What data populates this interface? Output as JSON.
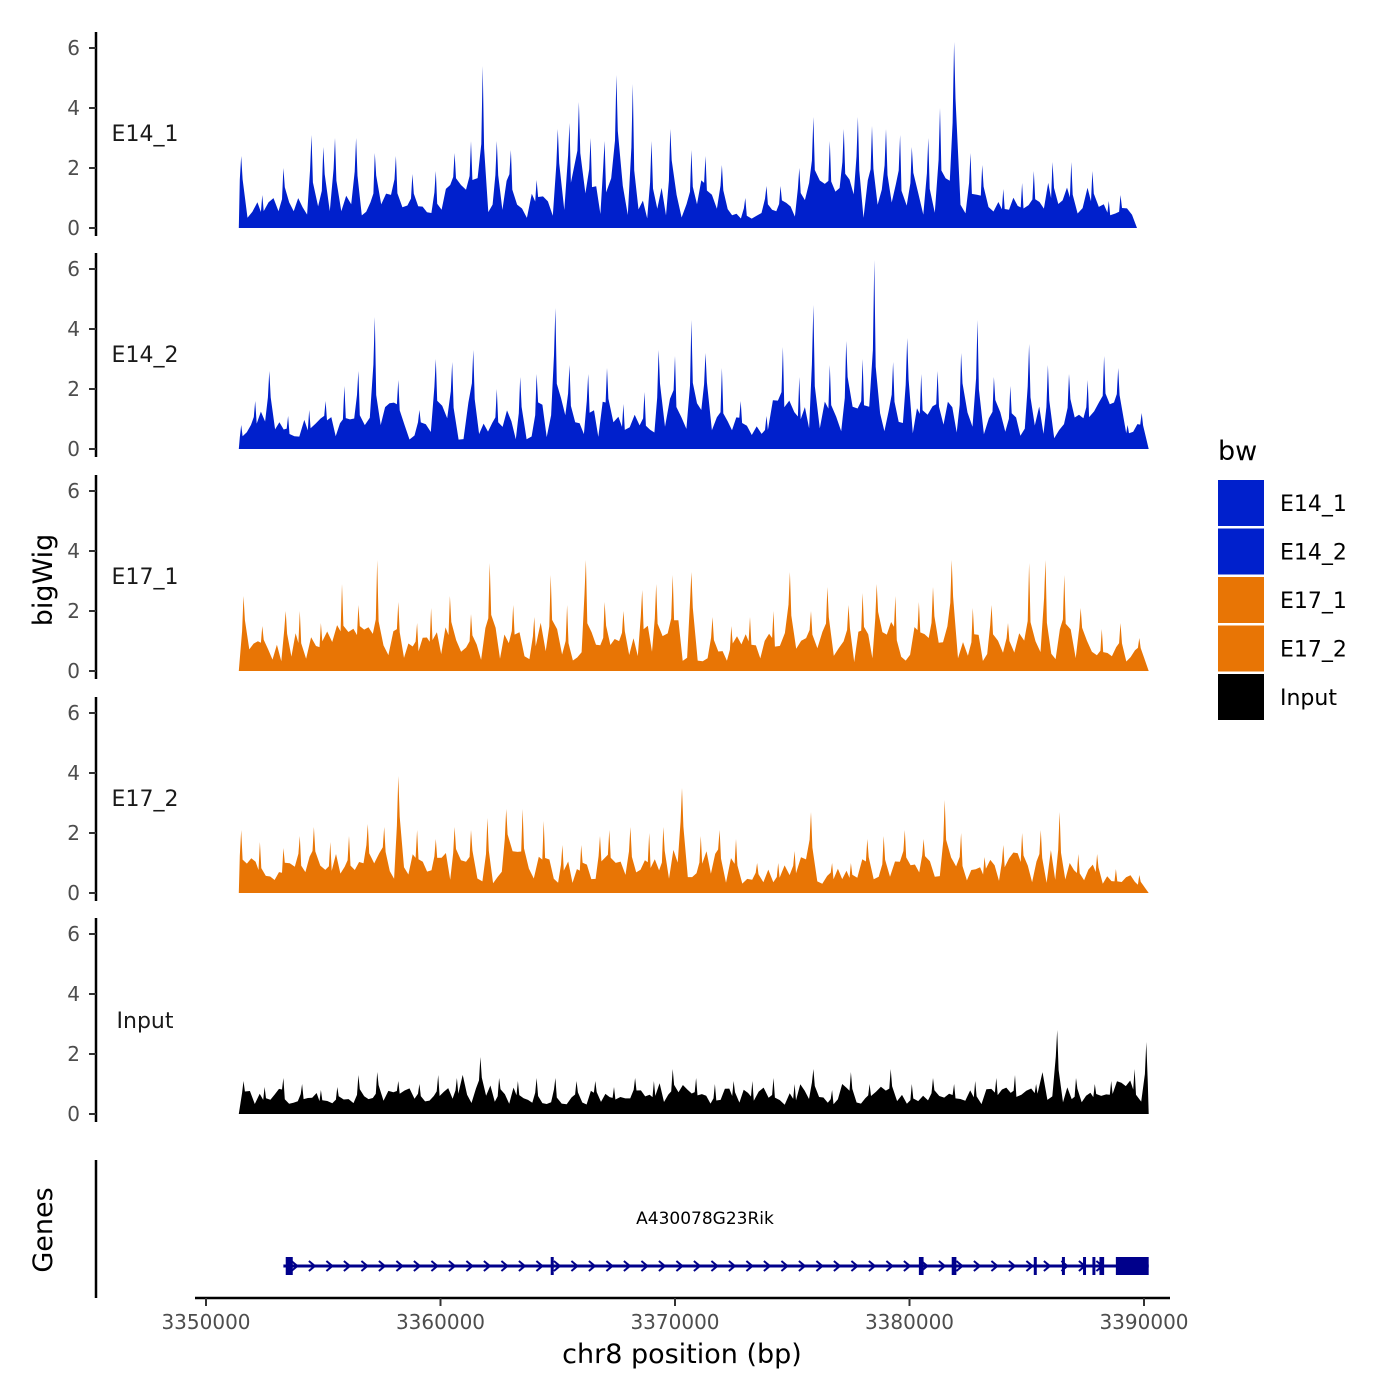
{
  "chart_data": {
    "type": "area",
    "chromosome": "chr8",
    "xlabel": "chr8 position (bp)",
    "ylabel": "bigWig",
    "genes_label": "Genes",
    "xlim": [
      3349000,
      3391000
    ],
    "x_ticks": [
      3350000,
      3360000,
      3370000,
      3380000,
      3390000
    ],
    "x_tick_labels": [
      "3350000",
      "3360000",
      "3370000",
      "3380000",
      "3390000"
    ],
    "ylim": [
      0,
      6.5
    ],
    "y_ticks": [
      0,
      2,
      4,
      6
    ],
    "y_tick_labels": [
      "0",
      "2",
      "4",
      "6"
    ],
    "legend": {
      "title": "bw",
      "entries": [
        {
          "name": "E14_1",
          "color": "#0020CC"
        },
        {
          "name": "E14_2",
          "color": "#0020CC"
        },
        {
          "name": "E17_1",
          "color": "#E87505"
        },
        {
          "name": "E17_2",
          "color": "#E87505"
        },
        {
          "name": "Input",
          "color": "#000000"
        }
      ]
    },
    "series": [
      {
        "name": "E14_1",
        "label": "E14_1",
        "color": "#0020CC",
        "x_start": 3351400,
        "x_end": 3389700,
        "peaks": [
          [
            3351500,
            2.4
          ],
          [
            3352400,
            1.1
          ],
          [
            3353300,
            2.0
          ],
          [
            3354500,
            3.1
          ],
          [
            3355000,
            2.7
          ],
          [
            3355500,
            3.0
          ],
          [
            3356400,
            3.0
          ],
          [
            3357200,
            2.5
          ],
          [
            3358100,
            2.4
          ],
          [
            3358800,
            1.8
          ],
          [
            3359800,
            1.9
          ],
          [
            3360600,
            2.5
          ],
          [
            3361300,
            2.9
          ],
          [
            3361800,
            5.4
          ],
          [
            3362400,
            2.9
          ],
          [
            3363000,
            2.6
          ],
          [
            3364100,
            1.6
          ],
          [
            3365000,
            3.3
          ],
          [
            3365500,
            3.5
          ],
          [
            3365900,
            4.2
          ],
          [
            3366400,
            3.0
          ],
          [
            3367000,
            2.9
          ],
          [
            3367500,
            5.1
          ],
          [
            3368200,
            4.8
          ],
          [
            3369000,
            2.9
          ],
          [
            3369800,
            3.3
          ],
          [
            3370700,
            2.6
          ],
          [
            3371300,
            2.4
          ],
          [
            3372000,
            2.1
          ],
          [
            3373000,
            1.0
          ],
          [
            3373900,
            1.4
          ],
          [
            3374500,
            1.4
          ],
          [
            3375300,
            2.0
          ],
          [
            3375900,
            3.7
          ],
          [
            3376600,
            2.9
          ],
          [
            3377200,
            3.3
          ],
          [
            3377800,
            3.7
          ],
          [
            3378400,
            3.4
          ],
          [
            3379000,
            3.3
          ],
          [
            3379600,
            3.1
          ],
          [
            3380100,
            2.7
          ],
          [
            3380800,
            3.0
          ],
          [
            3381300,
            4.0
          ],
          [
            3381900,
            6.2
          ],
          [
            3382600,
            2.5
          ],
          [
            3383100,
            2.1
          ],
          [
            3384000,
            1.3
          ],
          [
            3384800,
            1.5
          ],
          [
            3385300,
            1.9
          ],
          [
            3386100,
            2.2
          ],
          [
            3386900,
            2.2
          ],
          [
            3387800,
            1.9
          ],
          [
            3388500,
            0.9
          ],
          [
            3389000,
            1.1
          ]
        ]
      },
      {
        "name": "E14_2",
        "label": "E14_2",
        "color": "#0020CC",
        "x_start": 3351400,
        "x_end": 3390200,
        "peaks": [
          [
            3351500,
            0.8
          ],
          [
            3352100,
            1.6
          ],
          [
            3352700,
            2.6
          ],
          [
            3353500,
            1.1
          ],
          [
            3354400,
            1.3
          ],
          [
            3355100,
            1.6
          ],
          [
            3355900,
            2.1
          ],
          [
            3356500,
            2.6
          ],
          [
            3357200,
            4.4
          ],
          [
            3358200,
            2.3
          ],
          [
            3359100,
            1.3
          ],
          [
            3359800,
            3.0
          ],
          [
            3360500,
            2.9
          ],
          [
            3361400,
            3.3
          ],
          [
            3362400,
            2.0
          ],
          [
            3363400,
            2.4
          ],
          [
            3364100,
            2.5
          ],
          [
            3364900,
            4.7
          ],
          [
            3365500,
            2.8
          ],
          [
            3366300,
            2.5
          ],
          [
            3367100,
            2.7
          ],
          [
            3367800,
            1.5
          ],
          [
            3368700,
            1.9
          ],
          [
            3369300,
            3.3
          ],
          [
            3370000,
            3.1
          ],
          [
            3370700,
            4.3
          ],
          [
            3371300,
            3.2
          ],
          [
            3372000,
            2.7
          ],
          [
            3372800,
            1.6
          ],
          [
            3373900,
            1.1
          ],
          [
            3374600,
            3.4
          ],
          [
            3375300,
            2.4
          ],
          [
            3375900,
            4.8
          ],
          [
            3376600,
            2.8
          ],
          [
            3377300,
            3.6
          ],
          [
            3378000,
            3.0
          ],
          [
            3378500,
            6.3
          ],
          [
            3379300,
            2.9
          ],
          [
            3379900,
            3.7
          ],
          [
            3380500,
            2.5
          ],
          [
            3381200,
            2.6
          ],
          [
            3382200,
            3.2
          ],
          [
            3382900,
            4.3
          ],
          [
            3383600,
            2.4
          ],
          [
            3384300,
            2.1
          ],
          [
            3385100,
            3.5
          ],
          [
            3385900,
            2.8
          ],
          [
            3386800,
            2.5
          ],
          [
            3387600,
            2.3
          ],
          [
            3388300,
            3.1
          ],
          [
            3388900,
            2.7
          ],
          [
            3389300,
            0.8
          ],
          [
            3389900,
            1.2
          ]
        ]
      },
      {
        "name": "E17_1",
        "label": "E17_1",
        "color": "#E87505",
        "x_start": 3351400,
        "x_end": 3390200,
        "peaks": [
          [
            3351600,
            2.5
          ],
          [
            3352400,
            1.5
          ],
          [
            3353400,
            2.0
          ],
          [
            3354000,
            2.0
          ],
          [
            3354900,
            1.6
          ],
          [
            3355800,
            2.9
          ],
          [
            3356500,
            2.2
          ],
          [
            3357300,
            3.7
          ],
          [
            3358200,
            2.3
          ],
          [
            3359000,
            1.6
          ],
          [
            3359600,
            2.1
          ],
          [
            3360400,
            2.5
          ],
          [
            3361300,
            1.9
          ],
          [
            3362100,
            3.6
          ],
          [
            3363100,
            2.2
          ],
          [
            3364000,
            1.8
          ],
          [
            3364700,
            3.2
          ],
          [
            3365400,
            2.2
          ],
          [
            3366200,
            3.7
          ],
          [
            3367000,
            2.3
          ],
          [
            3367800,
            2.0
          ],
          [
            3368600,
            2.7
          ],
          [
            3369200,
            2.9
          ],
          [
            3369900,
            3.2
          ],
          [
            3370700,
            3.3
          ],
          [
            3371600,
            1.8
          ],
          [
            3372400,
            1.5
          ],
          [
            3373200,
            1.8
          ],
          [
            3374200,
            2.0
          ],
          [
            3374900,
            3.3
          ],
          [
            3375800,
            2.0
          ],
          [
            3376500,
            2.8
          ],
          [
            3377400,
            2.2
          ],
          [
            3378000,
            2.6
          ],
          [
            3378600,
            2.9
          ],
          [
            3379400,
            2.5
          ],
          [
            3380400,
            2.3
          ],
          [
            3381000,
            2.8
          ],
          [
            3381800,
            3.7
          ],
          [
            3382700,
            2.1
          ],
          [
            3383500,
            2.2
          ],
          [
            3384200,
            1.6
          ],
          [
            3385100,
            3.6
          ],
          [
            3385800,
            3.7
          ],
          [
            3386600,
            3.2
          ],
          [
            3387300,
            2.1
          ],
          [
            3388200,
            1.4
          ],
          [
            3389000,
            1.6
          ],
          [
            3389800,
            1.1
          ]
        ]
      },
      {
        "name": "E17_2",
        "label": "E17_2",
        "color": "#E87505",
        "x_start": 3351400,
        "x_end": 3390200,
        "peaks": [
          [
            3351500,
            2.1
          ],
          [
            3352300,
            1.7
          ],
          [
            3353300,
            1.5
          ],
          [
            3354000,
            1.9
          ],
          [
            3354600,
            2.2
          ],
          [
            3355300,
            1.7
          ],
          [
            3356100,
            1.9
          ],
          [
            3356900,
            2.3
          ],
          [
            3357600,
            2.2
          ],
          [
            3358200,
            3.9
          ],
          [
            3359000,
            2.1
          ],
          [
            3359800,
            1.8
          ],
          [
            3360600,
            2.2
          ],
          [
            3361300,
            2.1
          ],
          [
            3362000,
            2.5
          ],
          [
            3362800,
            2.8
          ],
          [
            3363500,
            2.8
          ],
          [
            3364400,
            2.4
          ],
          [
            3365200,
            1.6
          ],
          [
            3366000,
            1.6
          ],
          [
            3366800,
            1.9
          ],
          [
            3367200,
            2.1
          ],
          [
            3368100,
            2.2
          ],
          [
            3368900,
            2.0
          ],
          [
            3369500,
            2.2
          ],
          [
            3370300,
            3.5
          ],
          [
            3371100,
            1.9
          ],
          [
            3371900,
            2.1
          ],
          [
            3372600,
            1.8
          ],
          [
            3373500,
            1.0
          ],
          [
            3374400,
            1.0
          ],
          [
            3375100,
            1.4
          ],
          [
            3375800,
            2.7
          ],
          [
            3376700,
            1.0
          ],
          [
            3377500,
            1.0
          ],
          [
            3378200,
            1.8
          ],
          [
            3378900,
            1.9
          ],
          [
            3379800,
            2.1
          ],
          [
            3380600,
            1.8
          ],
          [
            3381500,
            3.1
          ],
          [
            3382200,
            2.0
          ],
          [
            3383200,
            1.2
          ],
          [
            3384000,
            1.6
          ],
          [
            3384800,
            2.0
          ],
          [
            3385600,
            2.1
          ],
          [
            3386400,
            2.7
          ],
          [
            3387200,
            1.3
          ],
          [
            3388000,
            1.3
          ],
          [
            3388800,
            0.8
          ],
          [
            3389800,
            0.6
          ]
        ]
      },
      {
        "name": "Input",
        "label": "Input",
        "color": "#000000",
        "x_start": 3351400,
        "x_end": 3390200,
        "peaks": [
          [
            3351600,
            1.1
          ],
          [
            3352500,
            0.9
          ],
          [
            3353300,
            1.2
          ],
          [
            3354100,
            1.0
          ],
          [
            3354900,
            0.8
          ],
          [
            3355600,
            0.9
          ],
          [
            3356500,
            1.3
          ],
          [
            3357300,
            1.4
          ],
          [
            3358200,
            1.1
          ],
          [
            3359100,
            1.0
          ],
          [
            3359900,
            1.3
          ],
          [
            3360700,
            1.2
          ],
          [
            3361700,
            1.9
          ],
          [
            3362500,
            1.2
          ],
          [
            3363300,
            1.1
          ],
          [
            3364100,
            1.2
          ],
          [
            3364900,
            1.2
          ],
          [
            3365800,
            1.1
          ],
          [
            3366600,
            1.1
          ],
          [
            3367400,
            0.9
          ],
          [
            3368300,
            1.2
          ],
          [
            3369100,
            1.1
          ],
          [
            3369900,
            1.5
          ],
          [
            3370900,
            1.2
          ],
          [
            3371700,
            1.0
          ],
          [
            3372500,
            1.1
          ],
          [
            3373300,
            1.1
          ],
          [
            3374200,
            1.2
          ],
          [
            3375100,
            1.0
          ],
          [
            3375900,
            1.5
          ],
          [
            3376700,
            0.8
          ],
          [
            3377500,
            1.4
          ],
          [
            3378300,
            1.0
          ],
          [
            3379200,
            1.5
          ],
          [
            3380100,
            1.0
          ],
          [
            3381000,
            1.2
          ],
          [
            3381900,
            1.0
          ],
          [
            3382800,
            1.1
          ],
          [
            3383700,
            1.2
          ],
          [
            3384500,
            1.3
          ],
          [
            3385400,
            1.0
          ],
          [
            3386300,
            2.8
          ],
          [
            3387100,
            1.2
          ],
          [
            3387900,
            1.0
          ],
          [
            3388600,
            1.1
          ],
          [
            3389600,
            1.5
          ],
          [
            3390100,
            2.4
          ]
        ]
      }
    ],
    "gene": {
      "name": "A430078G23Rik",
      "color": "#00008B",
      "start": 3353300,
      "end": 3390200,
      "exons": [
        [
          3353400,
          3353700
        ],
        [
          3364700,
          3364800
        ],
        [
          3380400,
          3380600
        ],
        [
          3381800,
          3382000
        ],
        [
          3385300,
          3385400
        ],
        [
          3386500,
          3386600
        ],
        [
          3387400,
          3387500
        ],
        [
          3387800,
          3387900
        ],
        [
          3388100,
          3388300
        ],
        [
          3388800,
          3390200
        ]
      ]
    }
  }
}
